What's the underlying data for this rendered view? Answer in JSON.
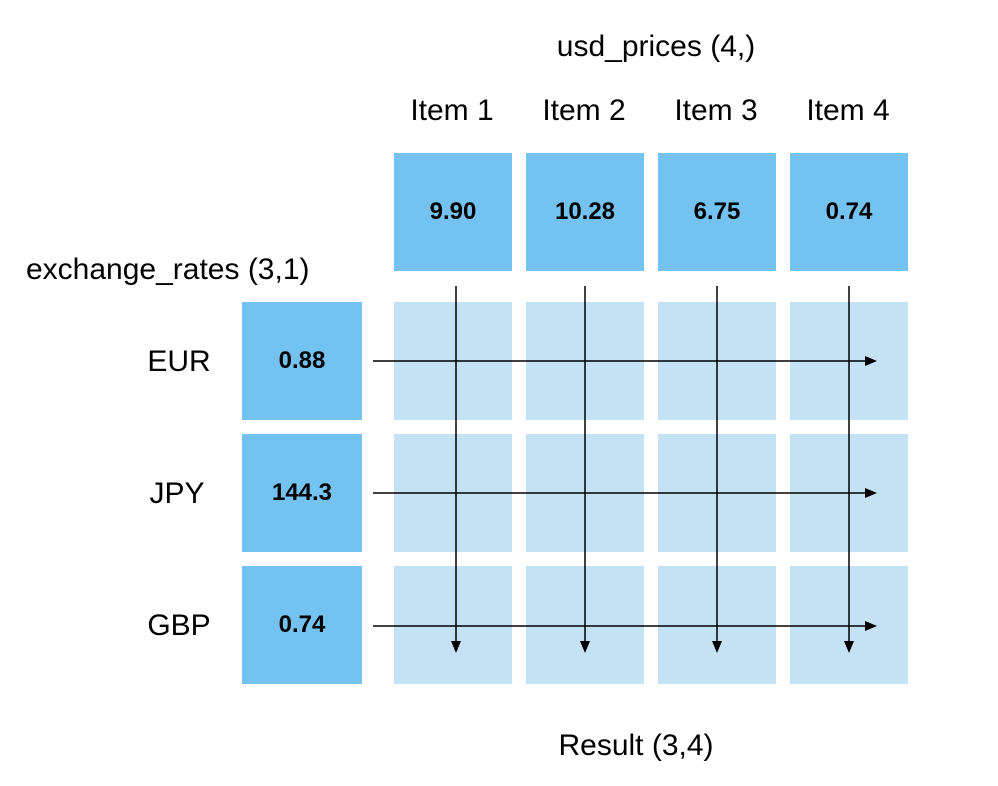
{
  "colors": {
    "vector_fill": "#74c2f0",
    "result_fill": "#c5e1f4",
    "arrow": "#000000"
  },
  "prices": {
    "title": "usd_prices (4,)",
    "items": [
      {
        "label": "Item 1",
        "value": "9.90"
      },
      {
        "label": "Item 2",
        "value": "10.28"
      },
      {
        "label": "Item 3",
        "value": "6.75"
      },
      {
        "label": "Item 4",
        "value": "0.74"
      }
    ]
  },
  "rates": {
    "title": "exchange_rates (3,1)",
    "rows": [
      {
        "label": "EUR",
        "value": "0.88"
      },
      {
        "label": "JPY",
        "value": "144.3"
      },
      {
        "label": "GBP",
        "value": "0.74"
      }
    ]
  },
  "result": {
    "title": "Result (3,4)"
  }
}
